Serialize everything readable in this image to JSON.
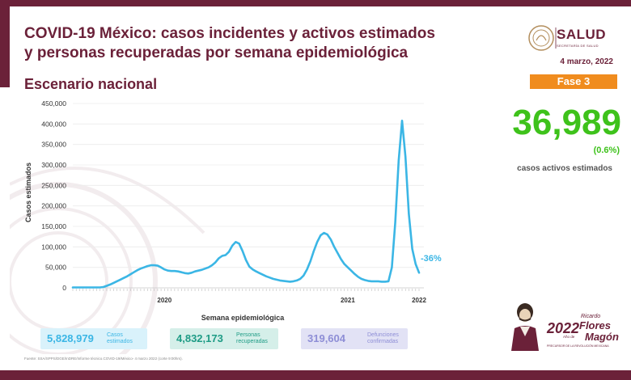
{
  "header": {
    "title_line1": "COVID-19 México: casos incidentes y activos estimados",
    "title_line2": "y personas recuperadas por semana epidemiológica",
    "subtitle": "Escenario nacional",
    "logo_text": "SALUD",
    "logo_subtext": "SECRETARÍA DE SALUD",
    "date": "4 marzo, 2022",
    "phase": "Fase 3"
  },
  "active_cases": {
    "value": "36,989",
    "percent": "(0.6%)",
    "label": "casos activos estimados"
  },
  "summary": {
    "estimated_cases": {
      "value": "5,828,979",
      "label_line1": "Casos",
      "label_line2": "estimados"
    },
    "recovered": {
      "value": "4,832,173",
      "label_line1": "Personas",
      "label_line2": "recuperadas"
    },
    "deaths": {
      "value": "319,604",
      "label_line1": "Defunciones",
      "label_line2": "confirmadas"
    }
  },
  "footer": {
    "source": "Fuente: SSA/SPPS/DGE/InDRE/Informe técnico.COVID-19/México- 4 marzo 2022 (corte 9:00hrs).",
    "year_badge": "2022",
    "year_badge_sub": "Año de",
    "name_line1": "Ricardo",
    "name_line2": "Flores",
    "name_line3": "Magón",
    "motto": "PRECURSOR DE LA REVOLUCIÓN MEXICANA"
  },
  "colors": {
    "brand": "#6b2139",
    "accent_orange": "#f08c1e",
    "active_green": "#3ec21b",
    "series_blue": "#3bb6e5",
    "recovered_teal": "#1f9c86",
    "deaths_purple": "#8e8ed6"
  },
  "chart_data": {
    "type": "line",
    "title": "",
    "xlabel": "Semana epidemiológica",
    "ylabel": "Casos estimados",
    "ylim": [
      0,
      450000
    ],
    "y_ticks": [
      0,
      50000,
      100000,
      150000,
      200000,
      250000,
      300000,
      350000,
      400000,
      450000
    ],
    "y_tick_labels": [
      "0",
      "50,000",
      "100,000",
      "150,000",
      "200,000",
      "250,000",
      "300,000",
      "350,000",
      "400,000",
      "450,000"
    ],
    "x_year_labels": [
      {
        "label": "2020",
        "week_index": 27
      },
      {
        "label": "2021",
        "week_index": 81
      },
      {
        "label": "2022",
        "week_index": 110
      }
    ],
    "annotation": "-36%",
    "grid": true,
    "series": [
      {
        "values": [
          1000,
          1000,
          1000,
          1000,
          1000,
          1000,
          1000,
          1000,
          1000,
          2000,
          5000,
          8000,
          12000,
          16000,
          20000,
          24000,
          28000,
          33000,
          38000,
          43000,
          47000,
          50000,
          53000,
          55000,
          55000,
          54000,
          50000,
          45000,
          42000,
          41000,
          41000,
          40000,
          38000,
          36000,
          35000,
          37000,
          40000,
          42000,
          44000,
          47000,
          50000,
          55000,
          62000,
          72000,
          78000,
          80000,
          88000,
          103000,
          112000,
          108000,
          90000,
          68000,
          52000,
          45000,
          40000,
          36000,
          32000,
          28000,
          25000,
          22000,
          20000,
          18000,
          17000,
          16000,
          15000,
          16000,
          18000,
          22000,
          30000,
          45000,
          65000,
          90000,
          112000,
          128000,
          134000,
          130000,
          118000,
          100000,
          85000,
          70000,
          58000,
          50000,
          42000,
          34000,
          27000,
          22000,
          19000,
          17000,
          16000,
          16000,
          16000,
          15000,
          15000,
          16000,
          50000,
          160000,
          310000,
          408000,
          320000,
          180000,
          95000,
          58000,
          37000
        ]
      }
    ]
  }
}
